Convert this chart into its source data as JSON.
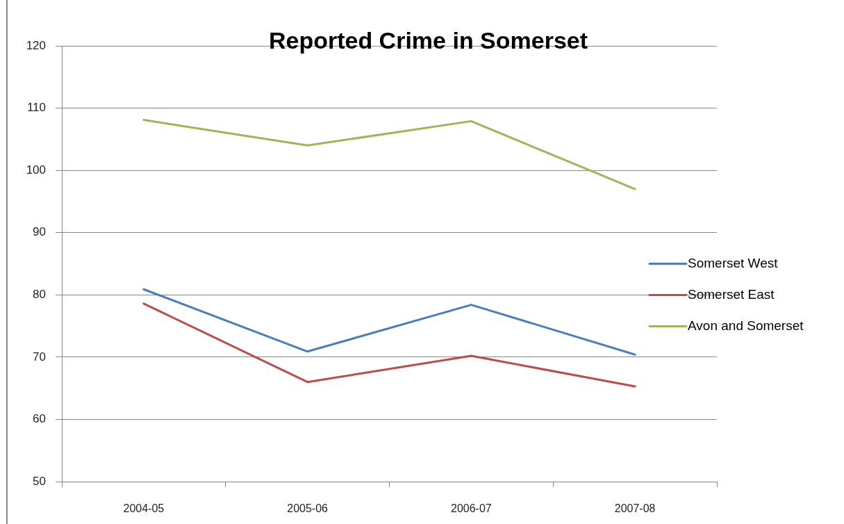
{
  "chart_data": {
    "type": "line",
    "title": "Reported Crime in Somerset",
    "categories": [
      "2004-05",
      "2005-06",
      "2006-07",
      "2007-08"
    ],
    "series": [
      {
        "name": "Somerset West",
        "color": "#4a7ebb",
        "values": [
          80.9,
          70.9,
          78.4,
          70.4
        ]
      },
      {
        "name": "Somerset East",
        "color": "#be4b48",
        "values": [
          78.6,
          66.0,
          70.2,
          65.3
        ]
      },
      {
        "name": "Avon and Somerset",
        "color": "#98b954",
        "values": [
          108.1,
          104.0,
          107.9,
          97.0
        ]
      }
    ],
    "ylim": [
      50,
      120
    ],
    "yticks": [
      50,
      60,
      70,
      80,
      90,
      100,
      110,
      120
    ],
    "grid": "y",
    "legend": "right",
    "marker": "none",
    "line_style": "solid"
  }
}
